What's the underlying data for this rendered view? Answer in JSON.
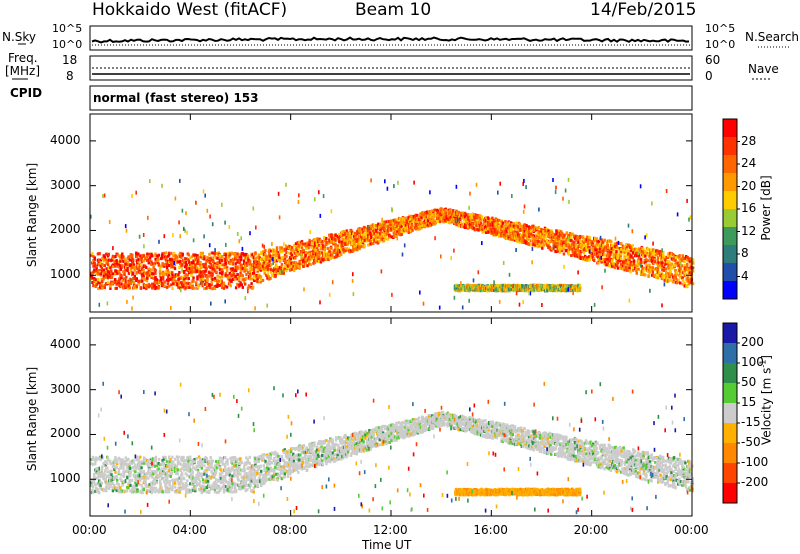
{
  "header": {
    "radar": "Hokkaido West (fitACF)",
    "beam": "Beam 10",
    "date": "14/Feb/2015"
  },
  "status_panels": {
    "nsky_label": "N.Sky",
    "nsky_ticks": [
      "10^5",
      "10^0"
    ],
    "nsearch_label": "N.Search",
    "nsearch_ticks": [
      "10^5",
      "10^0"
    ],
    "freq_label": "Freq.",
    "freq_unit": "[MHz]",
    "freq_ticks": [
      "18",
      "8"
    ],
    "nave_label": "Nave",
    "nave_ticks": [
      "60",
      "0"
    ],
    "cpid_label": "CPID",
    "cpid_value": "normal (fast stereo) 153"
  },
  "chart_data": [
    {
      "type": "heatmap",
      "title": "",
      "xlabel": "",
      "ylabel": "Slant Range [km]",
      "x_ticks": [
        "00:00",
        "04:00",
        "08:00",
        "12:00",
        "16:00",
        "20:00",
        "00:00"
      ],
      "x_range_hours": [
        0,
        24
      ],
      "y_ticks": [
        "1000",
        "2000",
        "3000",
        "4000"
      ],
      "ylim": [
        180,
        4600
      ],
      "colorbar": {
        "label": "Power [dB]",
        "ticks": [
          "4",
          "8",
          "12",
          "16",
          "20",
          "24",
          "28"
        ],
        "range": [
          0,
          30
        ],
        "colors": [
          "#0000ff",
          "#1f4fa8",
          "#2e7d7a",
          "#3c9a5a",
          "#99cc33",
          "#ffcc00",
          "#ff9900",
          "#ff6600",
          "#ff3300",
          "#ff0000"
        ]
      },
      "features": [
        {
          "name": "near-range band",
          "start_h": 0,
          "end_h": 6.5,
          "range_km": [
            700,
            1500
          ],
          "power_db": 24
        },
        {
          "name": "rising arc",
          "start_h": 6.5,
          "end_h": 14,
          "range_km_start": [
            800,
            1500
          ],
          "range_km_end": [
            2200,
            2500
          ],
          "power_db": 22
        },
        {
          "name": "descending arc",
          "start_h": 14,
          "end_h": 24,
          "range_km_start": [
            2200,
            2500
          ],
          "range_km_end": [
            700,
            1400
          ],
          "power_db": 22
        },
        {
          "name": "patch",
          "start_h": 14.5,
          "end_h": 19.5,
          "range_km": [
            650,
            780
          ],
          "power_db": 15
        }
      ]
    },
    {
      "type": "heatmap",
      "title": "",
      "xlabel": "Time UT",
      "ylabel": "Slant Range [km]",
      "x_ticks": [
        "00:00",
        "04:00",
        "08:00",
        "12:00",
        "16:00",
        "20:00",
        "00:00"
      ],
      "x_range_hours": [
        0,
        24
      ],
      "y_ticks": [
        "1000",
        "2000",
        "3000",
        "4000"
      ],
      "ylim": [
        180,
        4600
      ],
      "colorbar": {
        "label": "Velocity [m s",
        "label_superscript": "-1",
        "label_close": "]",
        "ticks": [
          "200",
          "100",
          "50",
          "15",
          "-15",
          "-50",
          "-100",
          "-200"
        ],
        "range": [
          -250,
          250
        ],
        "colors": [
          "#1a1aa6",
          "#2e6fa8",
          "#2e8f4a",
          "#55cc33",
          "#cccccc",
          "#ffb000",
          "#ff8800",
          "#ff4400",
          "#ff0000"
        ]
      },
      "features": [
        {
          "name": "ground scatter band",
          "start_h": 0,
          "end_h": 6.5,
          "range_km": [
            700,
            1500
          ],
          "velocity": 0
        },
        {
          "name": "rising arc",
          "start_h": 6.5,
          "end_h": 14,
          "range_km_start": [
            800,
            1500
          ],
          "range_km_end": [
            2200,
            2500
          ],
          "velocity": 0
        },
        {
          "name": "descending arc",
          "start_h": 14,
          "end_h": 24,
          "range_km_start": [
            2200,
            2500
          ],
          "range_km_end": [
            700,
            1400
          ],
          "velocity": 0
        },
        {
          "name": "patch",
          "start_h": 14.5,
          "end_h": 19.5,
          "range_km": [
            650,
            780
          ],
          "velocity": -60
        }
      ]
    }
  ]
}
